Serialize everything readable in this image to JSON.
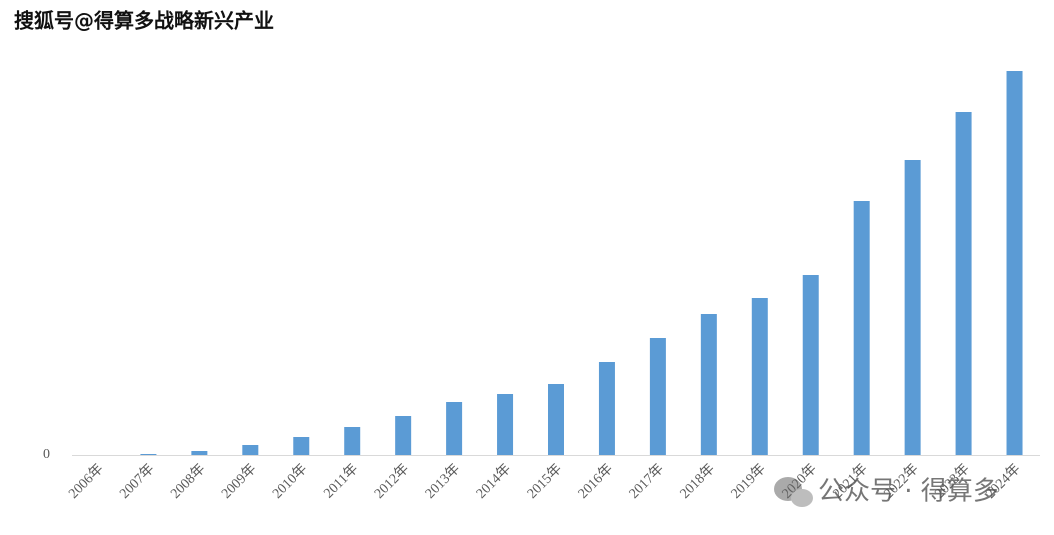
{
  "chart_data": {
    "type": "bar",
    "watermark_top": "搜狐号@得算多战略新兴产业",
    "watermark_bottom": "公众号 · 得算多",
    "categories": [
      "2006年",
      "2007年",
      "2008年",
      "2009年",
      "2010年",
      "2011年",
      "2012年",
      "2013年",
      "2014年",
      "2015年",
      "2016年",
      "2017年",
      "2018年",
      "2019年",
      "2020年",
      "2021年",
      "2022年",
      "2023年",
      "2024年"
    ],
    "values": [
      0,
      1,
      4,
      10,
      18,
      28,
      39,
      53,
      61,
      71,
      93,
      117,
      141,
      157,
      180,
      254,
      295,
      343,
      384
    ],
    "color": "#5b9bd5",
    "ylim": [
      0,
      400
    ],
    "yticks": [
      0
    ],
    "grid": false
  }
}
